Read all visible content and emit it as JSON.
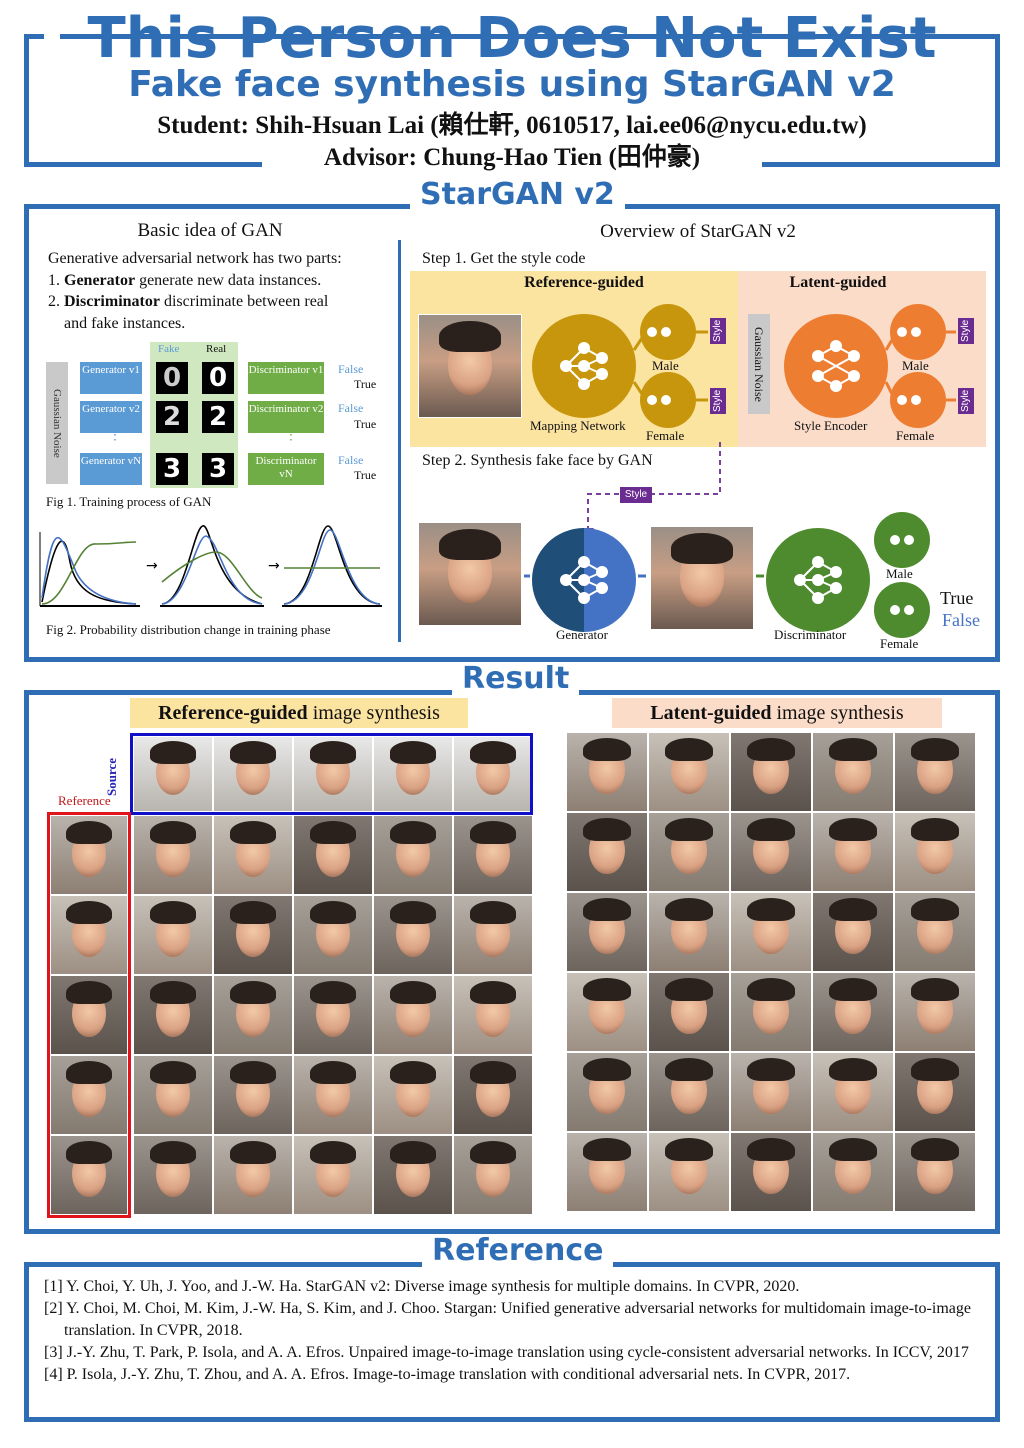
{
  "header": {
    "title": "This Person Does Not Exist",
    "subtitle": "Fake face synthesis using StarGAN v2",
    "student": "Student: Shih-Hsuan Lai (賴仕軒, 0610517, lai.ee06@nycu.edu.tw)",
    "advisor": "Advisor: Chung-Hao Tien (田仲豪)"
  },
  "stargan": {
    "section_title": "StarGAN v2",
    "basic": {
      "heading": "Basic idea of GAN",
      "intro": "Generative adversarial network has two parts:",
      "item1_bold": "Generator",
      "item1_rest": " generate new data instances.",
      "item2_bold": "Discriminator",
      "item2_rest": " discriminate between real",
      "item2_cont": "and fake instances.",
      "fig1": {
        "noise_label": "Gaussian Noise",
        "fake_label": "Fake",
        "real_label": "Real",
        "generators": [
          "Generator v1",
          "Generator v2",
          "Generator vN"
        ],
        "discriminators": [
          "Discriminator v1",
          "Discriminator v2",
          "Discriminator vN"
        ],
        "fake_digits": [
          "0",
          "2",
          "3"
        ],
        "real_digits": [
          "0",
          "2",
          "3"
        ],
        "false_label": "False",
        "true_label": "True",
        "caption": "Fig 1. Training process of GAN"
      },
      "fig2_caption": "Fig 2. Probability distribution change in training phase"
    },
    "overview": {
      "heading": "Overview of StarGAN v2",
      "step1": "Step 1. Get the style code",
      "ref_guided": "Reference-guided",
      "latent_guided": "Latent-guided",
      "mapping_network": "Mapping Network",
      "style_encoder": "Style Encoder",
      "gaussian_noise": "Gaussian Noise",
      "male": "Male",
      "female": "Female",
      "style": "Style",
      "step2": "Step 2. Synthesis fake face by GAN",
      "generator": "Generator",
      "discriminator": "Discriminator",
      "true_label": "True",
      "false_label": "False"
    }
  },
  "result": {
    "section_title": "Result",
    "ref_bold": "Reference-guided",
    "ref_rest": " image synthesis",
    "latent_bold": "Latent-guided",
    "latent_rest": " image synthesis",
    "source_label": "Source",
    "reference_label": "Reference"
  },
  "references": {
    "section_title": "Reference",
    "items": [
      "[1] Y. Choi, Y. Uh, J. Yoo, and J.-W. Ha. StarGAN v2: Diverse image synthesis for multiple domains. In CVPR, 2020.",
      "[2] Y. Choi, M. Choi, M. Kim, J.-W. Ha, S. Kim, and J. Choo. Stargan: Unified generative adversarial networks for multidomain image-to-image translation. In CVPR, 2018.",
      "[3] J.-Y. Zhu, T. Park, P. Isola, and A. A. Efros. Unpaired image-to-image translation using cycle-consistent adversarial networks. In ICCV, 2017",
      "[4] P. Isola, J.-Y. Zhu, T. Zhou, and A. A. Efros. Image-to-image translation with conditional adversarial nets. In CVPR, 2017."
    ]
  },
  "colors": {
    "accent": "#2f6eb5",
    "ref_panel": "#fbe3a0",
    "latent_panel": "#fbdcc8",
    "mapping": "#c8960c",
    "encoder": "#ed7d31",
    "generator": "#2f6eb5",
    "discriminator": "#4e8a2e",
    "style": "#6b2c91"
  }
}
